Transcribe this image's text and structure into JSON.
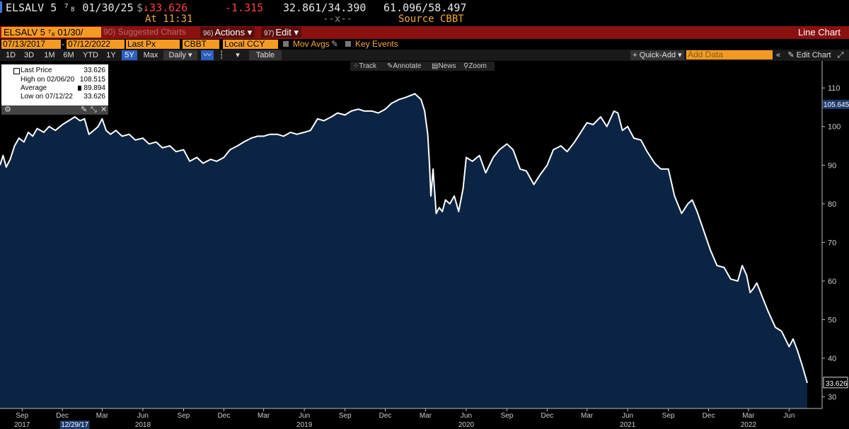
{
  "header": {
    "ticker": "ELSALV 5 ⁷₈ 01/30/25",
    "currency_symbol": "$",
    "last_price": "↓33.626",
    "change": "-1.315",
    "bid_ask": "32.861/34.390",
    "range": "61.096/58.497",
    "at_time": "At 11:31",
    "separator": "--x--",
    "source": "Source CBBT"
  },
  "redbar": {
    "security_input": "ELSALV 5 ⁷₈ 01/30/",
    "suggested": "90) Suggested Charts",
    "actions_num": "96)",
    "actions_label": "Actions ▾",
    "edit_num": "97)",
    "edit_label": "Edit ▾",
    "title": "Line Chart"
  },
  "settings": {
    "start_date": "07/13/2017",
    "end_date": "07/12/2022",
    "field": "Last Px",
    "source": "CBBT",
    "currency": "Local CCY",
    "mov_avgs": "Mov Avgs",
    "key_events": "Key Events"
  },
  "toolbar": {
    "periods": [
      "1D",
      "3D",
      "1M",
      "6M",
      "YTD",
      "1Y",
      "5Y",
      "Max"
    ],
    "selected_period": "5Y",
    "frequency": "Daily ▾",
    "table": "Table",
    "quick_add": "+ Quick-Add ▾",
    "add_data_placeholder": "Add Data",
    "collapse": "«",
    "edit_chart": "✎ Edit Chart",
    "zoom_out": "⤢"
  },
  "chart_tools": {
    "track": "Track",
    "annotate": "Annotate",
    "news": "News",
    "zoom": "Zoom"
  },
  "legend": {
    "last_label": "Last Price",
    "last_value": "33.626",
    "high_label": "High on 02/06/20",
    "high_value": "108.515",
    "avg_label": "Average",
    "avg_value": "89.894",
    "low_label": "Low on 07/12/22",
    "low_value": "33.626"
  },
  "colors": {
    "line": "#ffffff",
    "fill": "#0c2444",
    "accent": "#f59b23",
    "redbar": "#8b1111"
  },
  "chart_data": {
    "type": "area",
    "title": "",
    "xlabel": "",
    "ylabel": "",
    "ylim": [
      27,
      117
    ],
    "xlim": [
      "2017-07-13",
      "2022-07-12"
    ],
    "y_ticks": [
      30,
      40,
      50,
      60,
      70,
      80,
      90,
      100,
      110
    ],
    "x_ticks": [
      {
        "date": "2017-09-01",
        "label": "Sep"
      },
      {
        "date": "2017-12-01",
        "label": "Dec"
      },
      {
        "date": "2018-03-01",
        "label": "Mar"
      },
      {
        "date": "2018-06-01",
        "label": "Jun"
      },
      {
        "date": "2018-09-01",
        "label": "Sep"
      },
      {
        "date": "2018-12-01",
        "label": "Dec"
      },
      {
        "date": "2019-03-01",
        "label": "Mar"
      },
      {
        "date": "2019-06-01",
        "label": "Jun"
      },
      {
        "date": "2019-09-01",
        "label": "Sep"
      },
      {
        "date": "2019-12-01",
        "label": "Dec"
      },
      {
        "date": "2020-03-01",
        "label": "Mar"
      },
      {
        "date": "2020-06-01",
        "label": "Jun"
      },
      {
        "date": "2020-09-01",
        "label": "Sep"
      },
      {
        "date": "2020-12-01",
        "label": "Dec"
      },
      {
        "date": "2021-03-01",
        "label": "Mar"
      },
      {
        "date": "2021-06-01",
        "label": "Jun"
      },
      {
        "date": "2021-09-01",
        "label": "Sep"
      },
      {
        "date": "2021-12-01",
        "label": "Dec"
      },
      {
        "date": "2022-03-01",
        "label": "Mar"
      },
      {
        "date": "2022-06-01",
        "label": "Jun"
      }
    ],
    "year_labels": [
      {
        "date": "2017-09-01",
        "label": "2017"
      },
      {
        "date": "2018-06-01",
        "label": "2018"
      },
      {
        "date": "2019-06-01",
        "label": "2019"
      },
      {
        "date": "2020-06-01",
        "label": "2020"
      },
      {
        "date": "2021-06-01",
        "label": "2021"
      },
      {
        "date": "2022-03-01",
        "label": "2022"
      }
    ],
    "crosshair_date_label": "12/29/17",
    "crosshair_date": "2017-12-29",
    "last_value_label": "33.626",
    "marker_value": 105.645,
    "marker_label": "105.645",
    "grid": false,
    "series": [
      {
        "values": [
          [
            "2017-07-13",
            90.0
          ],
          [
            "2017-07-20",
            92.5
          ],
          [
            "2017-07-27",
            89.5
          ],
          [
            "2017-08-05",
            91.5
          ],
          [
            "2017-08-15",
            95.0
          ],
          [
            "2017-08-25",
            97.0
          ],
          [
            "2017-09-05",
            96.0
          ],
          [
            "2017-09-15",
            98.5
          ],
          [
            "2017-09-25",
            97.5
          ],
          [
            "2017-10-05",
            99.5
          ],
          [
            "2017-10-20",
            98.5
          ],
          [
            "2017-11-01",
            100.0
          ],
          [
            "2017-11-15",
            99.0
          ],
          [
            "2017-12-01",
            100.5
          ],
          [
            "2017-12-15",
            101.5
          ],
          [
            "2017-12-29",
            102.5
          ],
          [
            "2018-01-10",
            101.5
          ],
          [
            "2018-01-20",
            102.0
          ],
          [
            "2018-01-30",
            98.0
          ],
          [
            "2018-02-10",
            99.0
          ],
          [
            "2018-02-20",
            100.0
          ],
          [
            "2018-03-01",
            102.0
          ],
          [
            "2018-03-10",
            99.0
          ],
          [
            "2018-03-20",
            98.0
          ],
          [
            "2018-04-01",
            99.0
          ],
          [
            "2018-04-15",
            97.5
          ],
          [
            "2018-05-01",
            98.0
          ],
          [
            "2018-05-15",
            96.5
          ],
          [
            "2018-06-01",
            97.0
          ],
          [
            "2018-06-15",
            95.5
          ],
          [
            "2018-07-01",
            96.0
          ],
          [
            "2018-07-15",
            94.5
          ],
          [
            "2018-08-01",
            95.0
          ],
          [
            "2018-08-15",
            93.5
          ],
          [
            "2018-09-01",
            94.0
          ],
          [
            "2018-09-15",
            91.0
          ],
          [
            "2018-10-01",
            92.0
          ],
          [
            "2018-10-15",
            90.5
          ],
          [
            "2018-11-01",
            91.5
          ],
          [
            "2018-11-15",
            91.0
          ],
          [
            "2018-12-01",
            92.0
          ],
          [
            "2018-12-15",
            94.0
          ],
          [
            "2019-01-01",
            95.0
          ],
          [
            "2019-01-15",
            96.0
          ],
          [
            "2019-02-01",
            97.0
          ],
          [
            "2019-02-15",
            97.5
          ],
          [
            "2019-03-01",
            97.5
          ],
          [
            "2019-03-15",
            98.0
          ],
          [
            "2019-04-01",
            98.0
          ],
          [
            "2019-04-15",
            97.5
          ],
          [
            "2019-05-01",
            98.5
          ],
          [
            "2019-05-15",
            98.0
          ],
          [
            "2019-06-01",
            98.5
          ],
          [
            "2019-06-15",
            99.0
          ],
          [
            "2019-07-01",
            102.0
          ],
          [
            "2019-07-15",
            101.5
          ],
          [
            "2019-08-01",
            102.5
          ],
          [
            "2019-08-15",
            103.5
          ],
          [
            "2019-09-01",
            103.0
          ],
          [
            "2019-09-15",
            104.0
          ],
          [
            "2019-10-01",
            104.5
          ],
          [
            "2019-10-15",
            104.0
          ],
          [
            "2019-11-01",
            104.0
          ],
          [
            "2019-11-15",
            103.5
          ],
          [
            "2019-12-01",
            104.5
          ],
          [
            "2019-12-15",
            106.0
          ],
          [
            "2020-01-01",
            107.0
          ],
          [
            "2020-01-15",
            107.5
          ],
          [
            "2020-02-06",
            108.5
          ],
          [
            "2020-02-20",
            107.0
          ],
          [
            "2020-02-28",
            104.0
          ],
          [
            "2020-03-06",
            98.0
          ],
          [
            "2020-03-10",
            90.0
          ],
          [
            "2020-03-13",
            82.0
          ],
          [
            "2020-03-18",
            89.0
          ],
          [
            "2020-03-25",
            77.5
          ],
          [
            "2020-04-01",
            79.0
          ],
          [
            "2020-04-08",
            78.0
          ],
          [
            "2020-04-15",
            81.0
          ],
          [
            "2020-04-25",
            80.0
          ],
          [
            "2020-05-05",
            82.0
          ],
          [
            "2020-05-15",
            78.0
          ],
          [
            "2020-05-25",
            84.0
          ],
          [
            "2020-06-01",
            92.0
          ],
          [
            "2020-06-15",
            91.0
          ],
          [
            "2020-07-01",
            92.5
          ],
          [
            "2020-07-15",
            88.0
          ],
          [
            "2020-08-01",
            92.0
          ],
          [
            "2020-08-15",
            94.0
          ],
          [
            "2020-09-01",
            95.5
          ],
          [
            "2020-09-15",
            94.0
          ],
          [
            "2020-10-01",
            89.0
          ],
          [
            "2020-10-15",
            88.5
          ],
          [
            "2020-11-01",
            85.0
          ],
          [
            "2020-11-15",
            87.5
          ],
          [
            "2020-12-01",
            90.0
          ],
          [
            "2020-12-15",
            94.0
          ],
          [
            "2021-01-01",
            95.0
          ],
          [
            "2021-01-15",
            93.5
          ],
          [
            "2021-02-01",
            96.0
          ],
          [
            "2021-02-15",
            98.5
          ],
          [
            "2021-03-01",
            101.0
          ],
          [
            "2021-03-15",
            100.5
          ],
          [
            "2021-04-01",
            102.5
          ],
          [
            "2021-04-15",
            100.0
          ],
          [
            "2021-05-01",
            104.0
          ],
          [
            "2021-05-10",
            103.5
          ],
          [
            "2021-05-20",
            99.0
          ],
          [
            "2021-06-01",
            100.0
          ],
          [
            "2021-06-15",
            97.0
          ],
          [
            "2021-07-01",
            96.5
          ],
          [
            "2021-07-15",
            93.5
          ],
          [
            "2021-08-01",
            90.5
          ],
          [
            "2021-08-15",
            89.0
          ],
          [
            "2021-09-01",
            89.0
          ],
          [
            "2021-09-15",
            82.0
          ],
          [
            "2021-10-01",
            77.5
          ],
          [
            "2021-10-15",
            80.0
          ],
          [
            "2021-10-25",
            81.0
          ],
          [
            "2021-11-05",
            78.0
          ],
          [
            "2021-11-20",
            73.0
          ],
          [
            "2021-12-05",
            68.0
          ],
          [
            "2021-12-20",
            64.0
          ],
          [
            "2022-01-05",
            63.5
          ],
          [
            "2022-01-20",
            60.5
          ],
          [
            "2022-02-05",
            60.0
          ],
          [
            "2022-02-15",
            64.0
          ],
          [
            "2022-02-25",
            61.5
          ],
          [
            "2022-03-05",
            57.0
          ],
          [
            "2022-03-12",
            58.0
          ],
          [
            "2022-03-20",
            59.5
          ],
          [
            "2022-04-01",
            56.0
          ],
          [
            "2022-04-15",
            52.0
          ],
          [
            "2022-05-01",
            48.0
          ],
          [
            "2022-05-15",
            47.0
          ],
          [
            "2022-06-01",
            43.0
          ],
          [
            "2022-06-10",
            45.0
          ],
          [
            "2022-06-20",
            42.0
          ],
          [
            "2022-07-01",
            38.0
          ],
          [
            "2022-07-12",
            33.626
          ]
        ]
      }
    ]
  }
}
